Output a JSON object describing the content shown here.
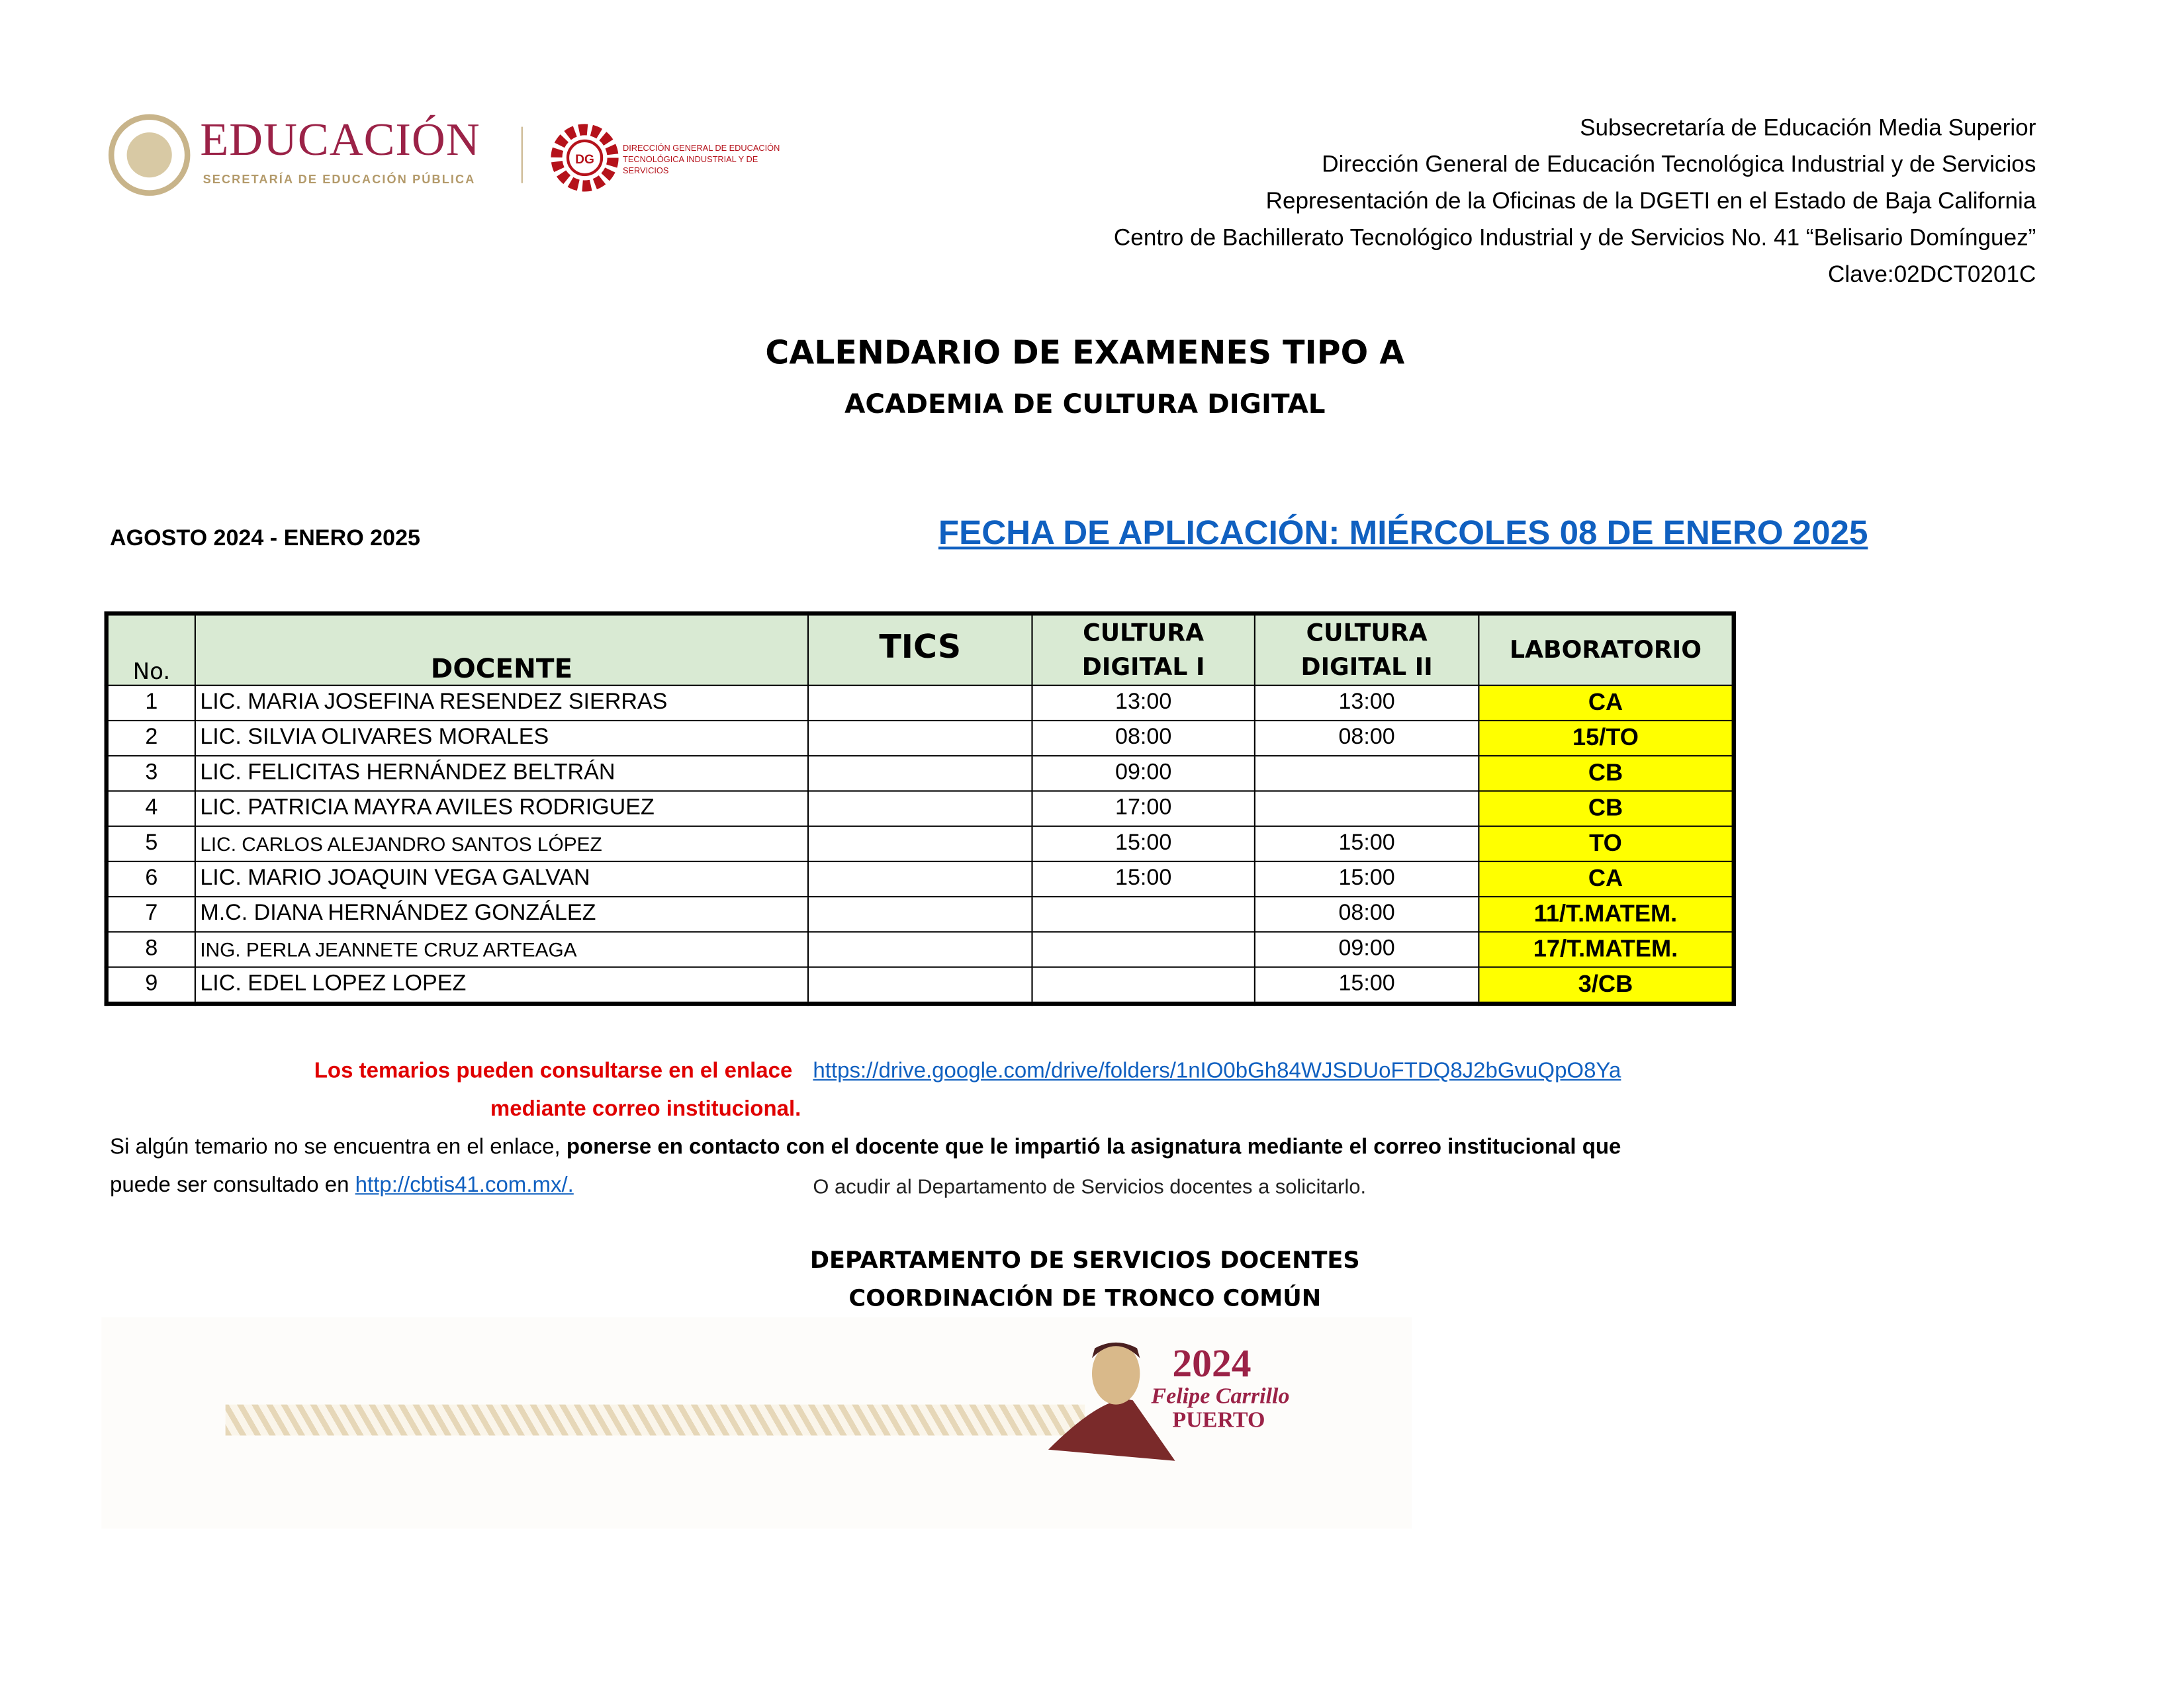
{
  "header": {
    "logo_sep": {
      "title": "EDUCACIÓN",
      "subtitle": "SECRETARÍA DE EDUCACIÓN PÚBLICA"
    },
    "logo_dgeti": {
      "mark": "DGETI",
      "text": "DIRECCIÓN GENERAL DE EDUCACIÓN TECNOLÓGICA INDUSTRIAL Y DE SERVICIOS"
    },
    "lines": [
      "Subsecretaría de Educación Media Superior",
      "Dirección General de Educación Tecnológica Industrial y de Servicios",
      "Representación de la Oficinas de la DGETI en el Estado de Baja California",
      "Centro de Bachillerato Tecnológico Industrial y de Servicios No. 41 “Belisario Domínguez”",
      "Clave:02DCT0201C"
    ]
  },
  "title": "CALENDARIO  DE EXAMENES TIPO A",
  "subtitle": "ACADEMIA DE CULTURA DIGITAL",
  "period": "AGOSTO 2024 - ENERO 2025",
  "date_banner": "FECHA DE APLICACIÓN: MIÉRCOLES 08 DE ENERO 2025",
  "table": {
    "headers": {
      "no": "No.",
      "docente": "DOCENTE",
      "tics": "TICS",
      "cd1a": "CULTURA",
      "cd1b": "DIGITAL I",
      "cd2a": "CULTURA",
      "cd2b": "DIGITAL II",
      "lab": "LABORATORIO"
    },
    "rows": [
      {
        "no": "1",
        "docente": "LIC. MARIA JOSEFINA RESENDEZ SIERRAS",
        "tics": "",
        "cd1": "13:00",
        "cd2": "13:00",
        "lab": "CA"
      },
      {
        "no": "2",
        "docente": "LIC. SILVIA OLIVARES MORALES",
        "tics": "",
        "cd1": "08:00",
        "cd2": "08:00",
        "lab": "15/TO"
      },
      {
        "no": "3",
        "docente": "LIC. FELICITAS HERNÁNDEZ BELTRÁN",
        "tics": "",
        "cd1": "09:00",
        "cd2": "",
        "lab": "CB"
      },
      {
        "no": "4",
        "docente": "LIC. PATRICIA MAYRA AVILES RODRIGUEZ",
        "tics": "",
        "cd1": "17:00",
        "cd2": "",
        "lab": "CB"
      },
      {
        "no": "5",
        "docente": "LIC. CARLOS ALEJANDRO SANTOS LÓPEZ",
        "tics": "",
        "cd1": "15:00",
        "cd2": "15:00",
        "lab": "TO"
      },
      {
        "no": "6",
        "docente": "LIC. MARIO JOAQUIN VEGA GALVAN",
        "tics": "",
        "cd1": "15:00",
        "cd2": "15:00",
        "lab": "CA"
      },
      {
        "no": "7",
        "docente": "M.C. DIANA HERNÁNDEZ GONZÁLEZ",
        "tics": "",
        "cd1": "",
        "cd2": "08:00",
        "lab": "11/T.MATEM."
      },
      {
        "no": "8",
        "docente": "ING. PERLA JEANNETE CRUZ ARTEAGA",
        "tics": "",
        "cd1": "",
        "cd2": "09:00",
        "lab": "17/T.MATEM."
      },
      {
        "no": "9",
        "docente": "LIC. EDEL LOPEZ LOPEZ",
        "tics": "",
        "cd1": "",
        "cd2": "15:00",
        "lab": "3/CB"
      }
    ]
  },
  "notes": {
    "red_1": "Los temarios pueden consultarse en el enlace",
    "drive_link": "https://drive.google.com/drive/folders/1nIO0bGh84WJSDUoFTDQ8J2bGvuQpO8Ya",
    "red_2": "mediante correo institucional.",
    "line3_normal": "Si algún temario no se encuentra en el enlace, ",
    "line3_bold": "ponerse en contacto con el docente que le impartió la asignatura mediante el correo institucional que",
    "line4_text": "puede ser consultado en ",
    "site_link": "http://cbtis41.com.mx/.",
    "line4_right": "O acudir al Departamento de Servicios docentes a solicitarlo."
  },
  "footer": {
    "dept": "DEPARTAMENTO DE SERVICIOS  DOCENTES",
    "coord": "COORDINACIÓN DE TRONCO COMÚN",
    "banner": {
      "year": "2024",
      "name": "Felipe Carrillo",
      "surname": "PUERTO"
    }
  },
  "colors": {
    "green_header": "#d9ead3",
    "lab_yellow": "#ffff00",
    "link_blue": "#1060c0",
    "red": "#e00000",
    "brand_maroon": "#9b2247"
  }
}
